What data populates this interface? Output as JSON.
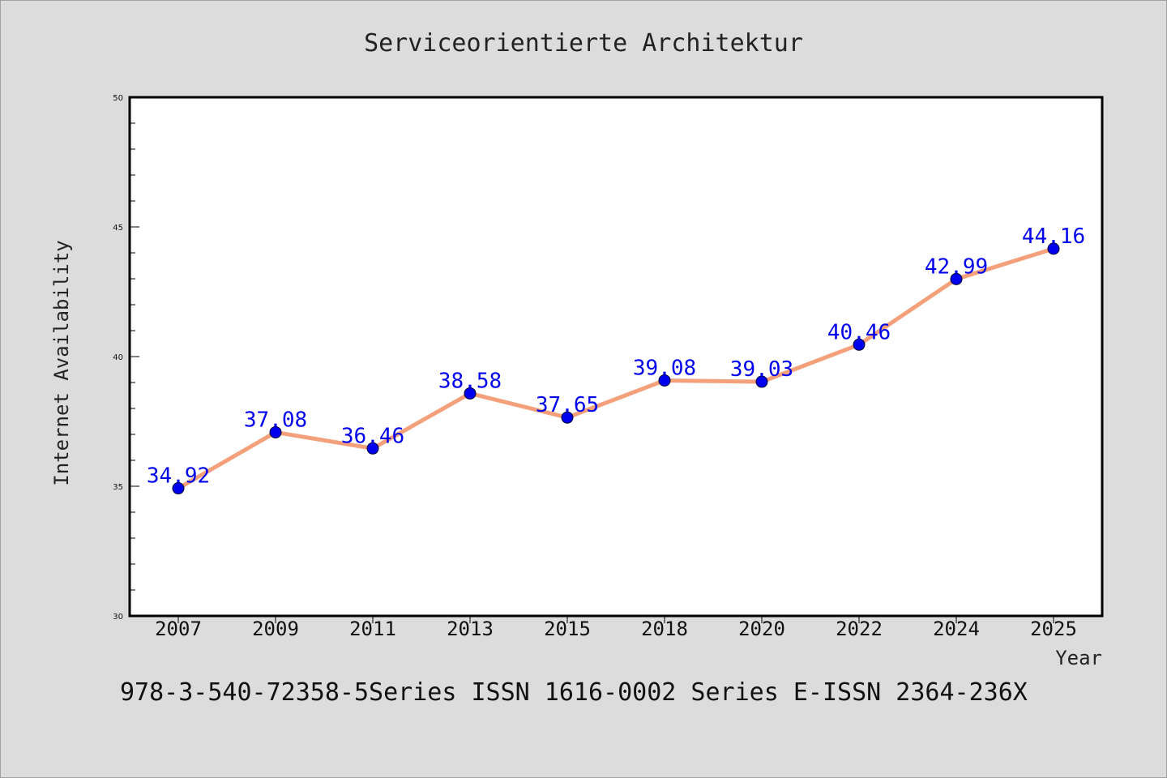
{
  "chart_data": {
    "type": "line",
    "title": "Serviceorientierte Architektur",
    "xlabel": "Year",
    "ylabel": "Internet Availability",
    "categories": [
      "2007",
      "2009",
      "2011",
      "2013",
      "2015",
      "2018",
      "2020",
      "2022",
      "2024",
      "2025"
    ],
    "series": [
      {
        "values": [
          34.92,
          37.08,
          36.46,
          38.58,
          37.65,
          39.08,
          39.03,
          40.46,
          42.99,
          44.16
        ]
      }
    ],
    "data_labels": [
      "34.92",
      "37.08",
      "36.46",
      "38.58",
      "37.65",
      "39.08",
      "39.03",
      "40.46",
      "42.99",
      "44.16"
    ],
    "ylim": [
      30,
      50
    ],
    "yticks": [
      "30",
      "35",
      "40",
      "45",
      "50"
    ],
    "grid": false,
    "legend": "none",
    "colors": {
      "line": "#f4a07a",
      "marker": "#0000ee",
      "label": "#0000ee",
      "background": "#dcdcdc",
      "plot_bg": "#ffffff"
    }
  },
  "footer_text": "978-3-540-72358-5Series ISSN 1616-0002 Series E-ISSN 2364-236X"
}
